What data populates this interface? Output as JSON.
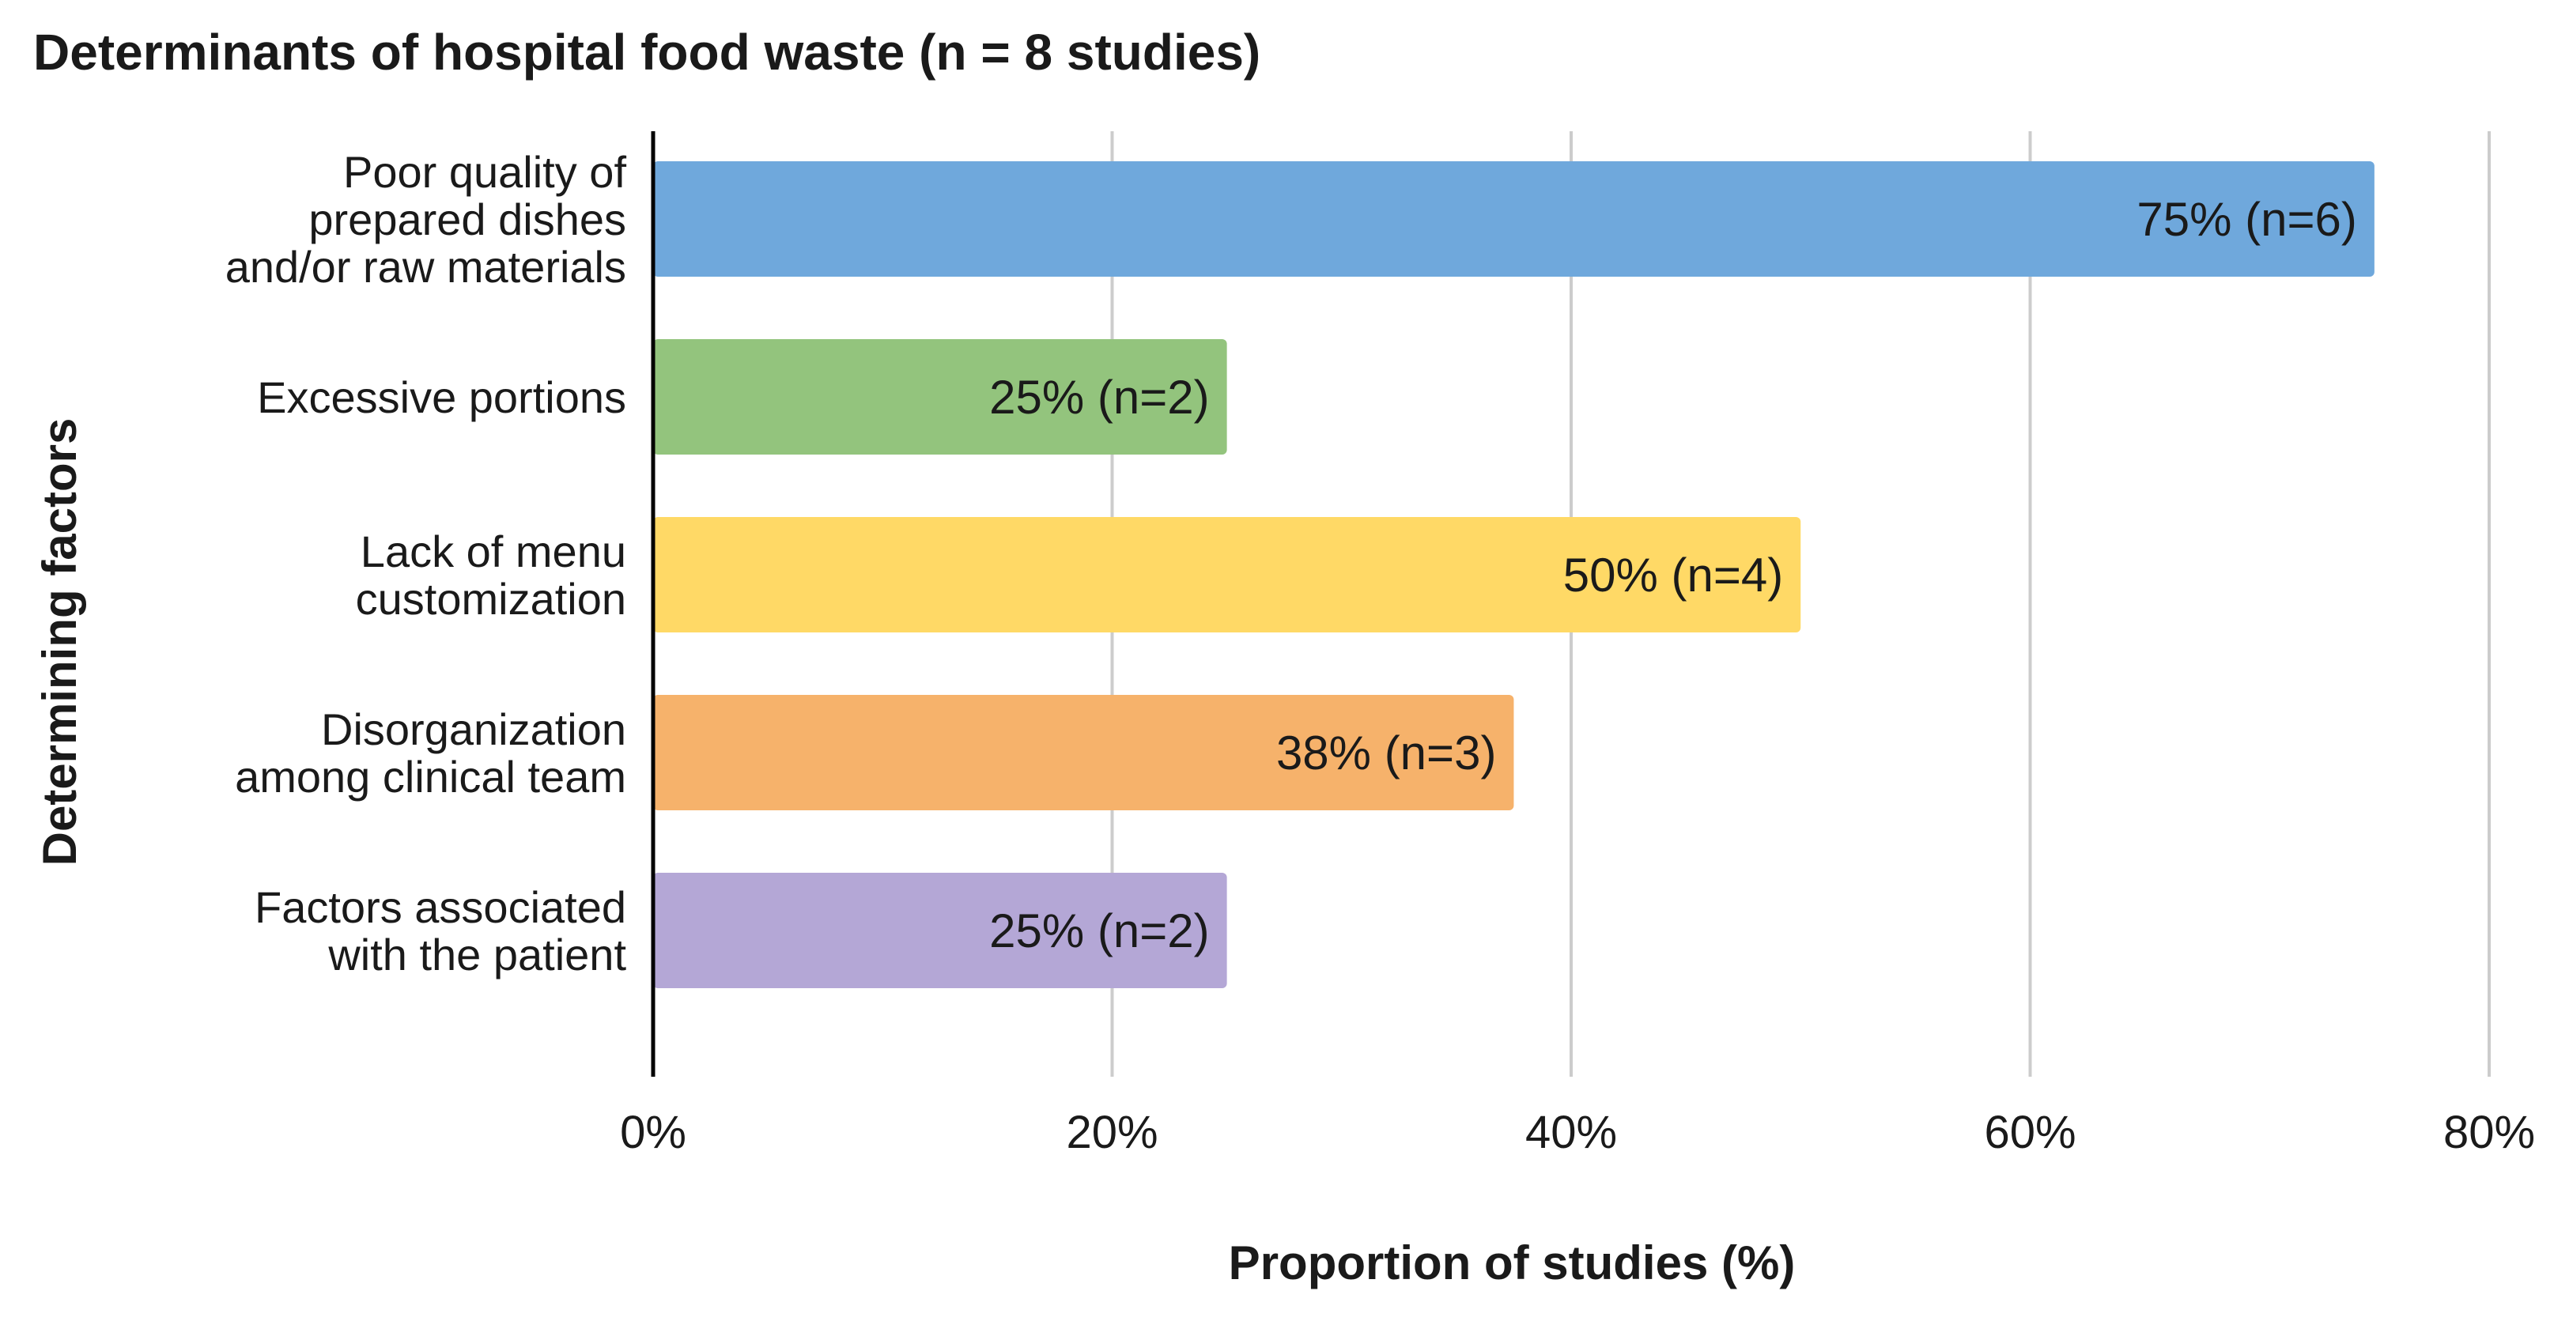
{
  "chart_data": {
    "type": "bar",
    "orientation": "horizontal",
    "title": "Determinants of hospital food waste (n = 8 studies)",
    "xlabel": "Proportion of studies  (%)",
    "ylabel": "Determining factors",
    "xlim": [
      0,
      80
    ],
    "xticks": [
      0,
      20,
      40,
      60,
      80
    ],
    "tick_suffix": "%",
    "grid": true,
    "categories": [
      [
        "Poor quality of",
        "prepared dishes",
        "and/or raw materials"
      ],
      [
        "Excessive portions"
      ],
      [
        "Lack of menu",
        "customization"
      ],
      [
        "Disorganization",
        "among clinical team"
      ],
      [
        "Factors associated",
        "with the patient"
      ]
    ],
    "values": [
      75,
      25,
      50,
      37.5,
      25
    ],
    "counts": [
      6,
      2,
      4,
      3,
      2
    ],
    "data_labels": [
      "75% (n=6)",
      "25% (n=2)",
      "50% (n=4)",
      "38% (n=3)",
      "25% (n=2)"
    ],
    "colors": [
      "#6fa8dc",
      "#93c47d",
      "#ffd966",
      "#f6b26b",
      "#b4a7d6"
    ],
    "grid_color": "#cccccc",
    "axis_color": "#000000"
  }
}
